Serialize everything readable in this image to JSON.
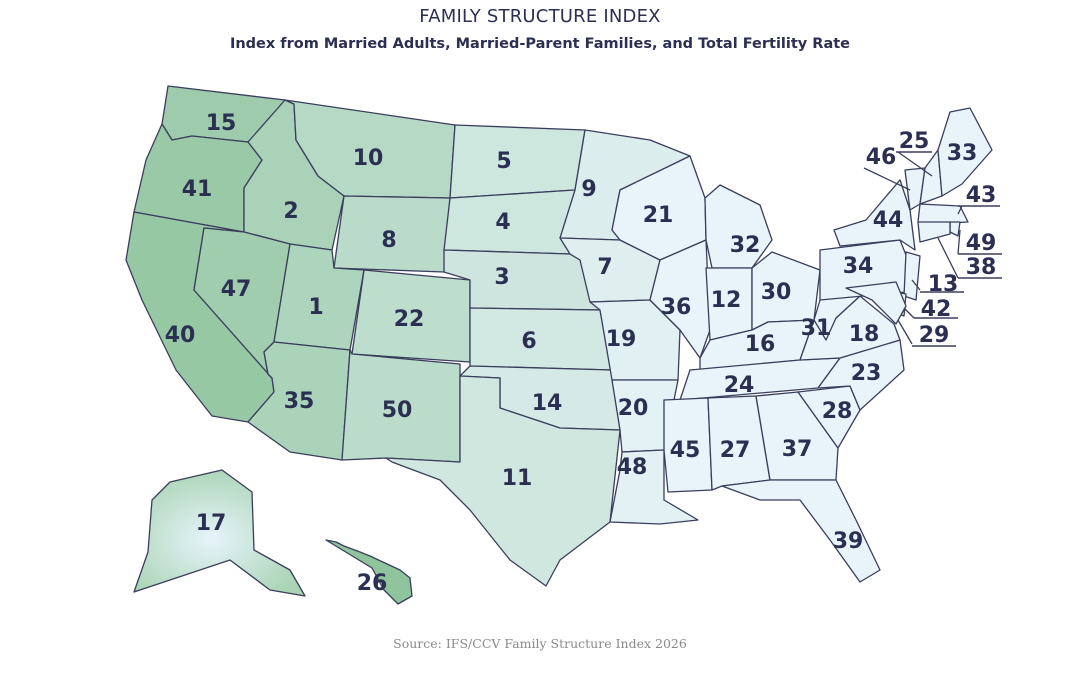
{
  "title": "FAMILY STRUCTURE INDEX",
  "subtitle": "Index from Married Adults, Married-Parent Families, and Total Fertility Rate",
  "source": "Source: IFS/CCV Family Structure Index 2026",
  "colors": {
    "low_rank_fill": "#8fc49d",
    "high_rank_fill": "#e8f4fa",
    "outline": "#3a3e5c",
    "label": "#2b2f52"
  },
  "states": [
    {
      "code": "WA",
      "rank": "15"
    },
    {
      "code": "OR",
      "rank": "41"
    },
    {
      "code": "CA",
      "rank": "40"
    },
    {
      "code": "ID",
      "rank": "2"
    },
    {
      "code": "NV",
      "rank": "47"
    },
    {
      "code": "MT",
      "rank": "10"
    },
    {
      "code": "WY",
      "rank": "8"
    },
    {
      "code": "UT",
      "rank": "1"
    },
    {
      "code": "AZ",
      "rank": "35"
    },
    {
      "code": "CO",
      "rank": "22"
    },
    {
      "code": "NM",
      "rank": "50"
    },
    {
      "code": "ND",
      "rank": "5"
    },
    {
      "code": "SD",
      "rank": "4"
    },
    {
      "code": "NE",
      "rank": "3"
    },
    {
      "code": "KS",
      "rank": "6"
    },
    {
      "code": "OK",
      "rank": "14"
    },
    {
      "code": "TX",
      "rank": "11"
    },
    {
      "code": "MN",
      "rank": "9"
    },
    {
      "code": "IA",
      "rank": "7"
    },
    {
      "code": "MO",
      "rank": "19"
    },
    {
      "code": "AR",
      "rank": "20"
    },
    {
      "code": "LA",
      "rank": "48"
    },
    {
      "code": "WI",
      "rank": "21"
    },
    {
      "code": "IL",
      "rank": "36"
    },
    {
      "code": "MI",
      "rank": "32"
    },
    {
      "code": "IN",
      "rank": "12"
    },
    {
      "code": "OH",
      "rank": "30"
    },
    {
      "code": "KY",
      "rank": "16"
    },
    {
      "code": "TN",
      "rank": "24"
    },
    {
      "code": "MS",
      "rank": "45"
    },
    {
      "code": "AL",
      "rank": "27"
    },
    {
      "code": "GA",
      "rank": "37"
    },
    {
      "code": "FL",
      "rank": "39"
    },
    {
      "code": "SC",
      "rank": "28"
    },
    {
      "code": "NC",
      "rank": "23"
    },
    {
      "code": "VA",
      "rank": "18"
    },
    {
      "code": "WV",
      "rank": "31"
    },
    {
      "code": "PA",
      "rank": "34"
    },
    {
      "code": "NY",
      "rank": "44"
    },
    {
      "code": "VT",
      "rank": "46"
    },
    {
      "code": "NH",
      "rank": "25"
    },
    {
      "code": "ME",
      "rank": "33"
    },
    {
      "code": "MA",
      "rank": "43"
    },
    {
      "code": "RI",
      "rank": "49"
    },
    {
      "code": "CT",
      "rank": "38"
    },
    {
      "code": "NJ",
      "rank": "13"
    },
    {
      "code": "DE",
      "rank": "42"
    },
    {
      "code": "MD",
      "rank": "29"
    },
    {
      "code": "AK",
      "rank": "17"
    },
    {
      "code": "HI",
      "rank": "26"
    }
  ]
}
